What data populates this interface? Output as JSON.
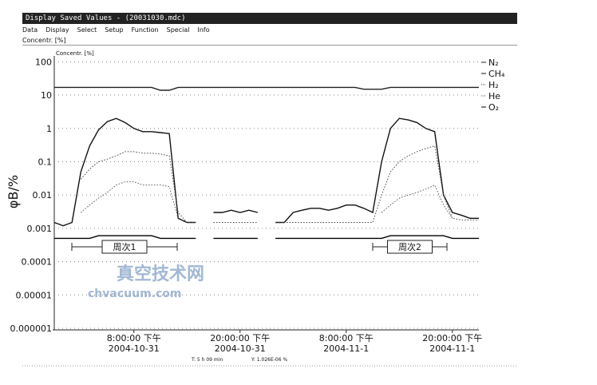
{
  "window": {
    "title": "Display Saved Values - (20031030.mdc)",
    "menu": [
      "Data",
      "Display",
      "Select",
      "Setup",
      "Function",
      "Special",
      "Info"
    ],
    "toolbar_label": "Concentr. [%]",
    "status": [
      "T: 5 h 09 min",
      "Y: 1.026E-06 %"
    ]
  },
  "watermark": {
    "cn": "真空技术网",
    "url": "chvacuum.com"
  },
  "chart_data": {
    "type": "line",
    "axis_label": "Concentr. [%]",
    "y_label": "φB/%",
    "log_y": true,
    "grid": true,
    "x": [
      0,
      1,
      2,
      3,
      4,
      5,
      6,
      7,
      8,
      9,
      10,
      11,
      12,
      13,
      14,
      15,
      16,
      17,
      18,
      19,
      20,
      21,
      22,
      23,
      24,
      25,
      26,
      27,
      28,
      29,
      30,
      31,
      32,
      33,
      34,
      35,
      36,
      37,
      38,
      39,
      40,
      41,
      42,
      43,
      44,
      45,
      46,
      47,
      48
    ],
    "xlim": [
      0,
      48
    ],
    "xticks": [
      {
        "value": 9,
        "label": "8:00:00 下午",
        "date": "2004-10-31"
      },
      {
        "value": 21,
        "label": "20:00:00 下午",
        "date": "2004-10-31"
      },
      {
        "value": 33,
        "label": "8:00:00 下午",
        "date": "2004-11-1"
      },
      {
        "value": 45,
        "label": "20:00:00 下午",
        "date": "2004-11-1"
      }
    ],
    "ylim": [
      1e-06,
      150
    ],
    "yticks": [
      100,
      10,
      1,
      0.1,
      0.01,
      0.001,
      0.0001,
      1e-05,
      1e-06
    ],
    "annotations": [
      "周次1",
      "周次2"
    ],
    "series": [
      {
        "name": "N₂",
        "color": "#222",
        "style": "solid",
        "values": [
          17,
          17,
          17,
          17,
          17,
          17,
          17,
          17,
          17,
          17,
          17,
          17,
          14,
          14,
          17,
          17,
          17,
          17,
          17,
          17,
          17,
          17,
          17,
          17,
          17,
          17,
          17,
          17,
          17,
          17,
          17,
          17,
          17,
          17,
          17,
          15,
          15,
          15,
          17,
          17,
          17,
          17,
          17,
          17,
          17,
          17,
          17,
          17,
          17
        ]
      },
      {
        "name": "CH₄",
        "color": "#111",
        "style": "solid",
        "values": [
          0.0015,
          0.0012,
          0.0015,
          0.05,
          0.3,
          0.9,
          1.6,
          2,
          1.5,
          1,
          0.8,
          0.8,
          0.75,
          0.7,
          0.002,
          0.0015,
          0.0015,
          null,
          0.003,
          0.003,
          0.0035,
          0.003,
          0.0035,
          0.003,
          null,
          0.0015,
          0.0015,
          0.003,
          0.0035,
          0.004,
          0.004,
          0.0035,
          0.004,
          0.005,
          0.005,
          0.004,
          0.003,
          0.1,
          1,
          2,
          1.8,
          1.5,
          1,
          0.8,
          0.01,
          0.003,
          0.0025,
          0.002,
          0.002
        ]
      },
      {
        "name": "H₂",
        "color": "#444",
        "style": "dotted",
        "values": [
          null,
          null,
          null,
          0.03,
          0.06,
          0.1,
          0.12,
          0.15,
          0.2,
          0.2,
          0.18,
          0.18,
          0.17,
          0.15,
          0.003,
          0.0015,
          0.0015,
          null,
          0.0015,
          0.0015,
          0.0015,
          0.0015,
          0.0015,
          0.0015,
          null,
          0.0015,
          0.0015,
          0.0015,
          0.0015,
          0.0015,
          0.0015,
          0.0015,
          0.0015,
          0.0015,
          0.0015,
          0.0015,
          0.0015,
          0.01,
          0.05,
          0.1,
          0.15,
          0.2,
          0.25,
          0.3,
          0.01,
          0.002,
          0.0018,
          0.0018,
          0.0018
        ]
      },
      {
        "name": "He",
        "color": "#555",
        "style": "dotted",
        "values": [
          null,
          null,
          null,
          0.003,
          0.005,
          0.008,
          0.012,
          0.02,
          0.025,
          0.025,
          0.02,
          0.02,
          0.02,
          0.018,
          0.002,
          null,
          null,
          null,
          null,
          null,
          null,
          null,
          null,
          null,
          null,
          null,
          null,
          null,
          null,
          null,
          null,
          null,
          null,
          null,
          null,
          null,
          null,
          0.003,
          0.005,
          0.008,
          0.01,
          0.012,
          0.015,
          0.02,
          0.005,
          0.002,
          null,
          null,
          null
        ]
      },
      {
        "name": "O₂",
        "color": "#000",
        "style": "solid",
        "values": [
          0.0005,
          0.0005,
          0.0005,
          0.0005,
          0.0005,
          0.0006,
          0.0006,
          0.0006,
          0.0006,
          0.0006,
          0.0006,
          0.0006,
          0.0005,
          0.0005,
          0.0005,
          0.0005,
          0.0005,
          null,
          0.0005,
          0.0005,
          0.0005,
          0.0005,
          0.0005,
          0.0005,
          null,
          0.0005,
          0.0005,
          0.0005,
          0.0005,
          0.0005,
          0.0005,
          0.0005,
          0.0005,
          0.0005,
          0.0005,
          0.0005,
          0.0005,
          0.0005,
          0.0006,
          0.0006,
          0.0006,
          0.0006,
          0.0006,
          0.0006,
          0.0006,
          0.0005,
          0.0005,
          0.0005,
          0.0005
        ]
      }
    ]
  }
}
